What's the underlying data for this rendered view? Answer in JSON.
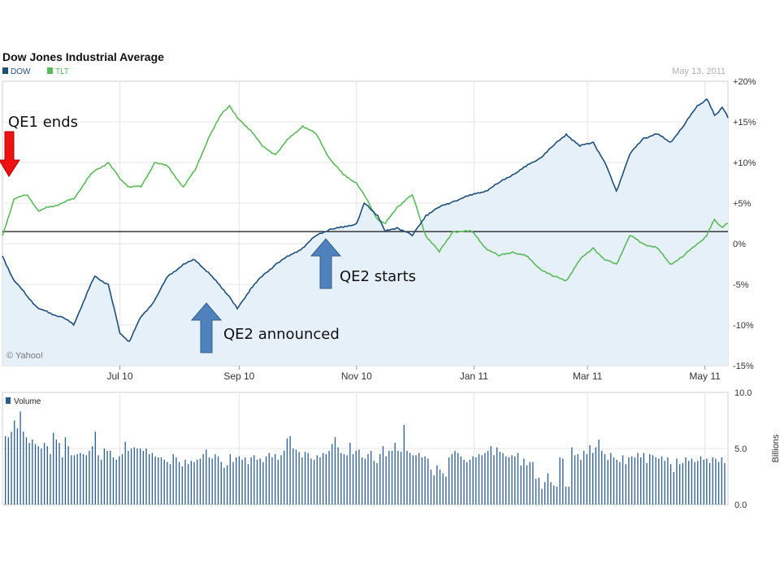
{
  "chart_data": [
    {
      "type": "line",
      "title": "Dow Jones Industrial Average",
      "date_stamp": "May 13, 2011",
      "credit": "© Yahoo!",
      "y_tick_labels": [
        "+20%",
        "+15%",
        "+10%",
        "+5%",
        "0%",
        "-5%",
        "-10%",
        "-15%"
      ],
      "ylim": [
        -15,
        20
      ],
      "x_tick_labels": [
        "Jul 10",
        "Sep 10",
        "Nov 10",
        "Jan 11",
        "Mar 11",
        "May 11"
      ],
      "xlim": [
        "2010-05-01",
        "2011-05-13"
      ],
      "x_tick_dates": [
        "2010-07-01",
        "2010-09-01",
        "2010-11-01",
        "2011-01-01",
        "2011-03-01",
        "2011-05-01"
      ],
      "series": [
        {
          "name": "DOW",
          "color": "#1f4e79",
          "fill": "#e6f0f8",
          "points": [
            [
              "2010-05-01",
              -1.5
            ],
            [
              "2010-05-07",
              -4.5
            ],
            [
              "2010-05-14",
              -6.5
            ],
            [
              "2010-05-20",
              -8.0
            ],
            [
              "2010-05-25",
              -8.5
            ],
            [
              "2010-06-01",
              -9.0
            ],
            [
              "2010-06-07",
              -10.0
            ],
            [
              "2010-06-14",
              -6.0
            ],
            [
              "2010-06-18",
              -4.0
            ],
            [
              "2010-06-25",
              -5.0
            ],
            [
              "2010-07-01",
              -11.0
            ],
            [
              "2010-07-06",
              -12.0
            ],
            [
              "2010-07-12",
              -9.0
            ],
            [
              "2010-07-19",
              -7.0
            ],
            [
              "2010-07-26",
              -4.0
            ],
            [
              "2010-08-03",
              -2.5
            ],
            [
              "2010-08-09",
              -2.0
            ],
            [
              "2010-08-16",
              -3.5
            ],
            [
              "2010-08-23",
              -5.5
            ],
            [
              "2010-08-27",
              -6.5
            ],
            [
              "2010-08-31",
              -8.0
            ],
            [
              "2010-09-07",
              -5.5
            ],
            [
              "2010-09-13",
              -4.0
            ],
            [
              "2010-09-20",
              -2.5
            ],
            [
              "2010-09-27",
              -1.5
            ],
            [
              "2010-10-04",
              -0.5
            ],
            [
              "2010-10-11",
              1.0
            ],
            [
              "2010-10-18",
              1.8
            ],
            [
              "2010-10-25",
              2.0
            ],
            [
              "2010-11-01",
              2.5
            ],
            [
              "2010-11-05",
              5.0
            ],
            [
              "2010-11-12",
              3.5
            ],
            [
              "2010-11-16",
              1.5
            ],
            [
              "2010-11-22",
              2.0
            ],
            [
              "2010-11-30",
              1.0
            ],
            [
              "2010-12-07",
              3.5
            ],
            [
              "2010-12-14",
              4.5
            ],
            [
              "2010-12-21",
              5.2
            ],
            [
              "2010-12-31",
              6.0
            ],
            [
              "2011-01-07",
              6.5
            ],
            [
              "2011-01-14",
              7.5
            ],
            [
              "2011-01-21",
              8.5
            ],
            [
              "2011-01-28",
              9.5
            ],
            [
              "2011-02-04",
              10.5
            ],
            [
              "2011-02-11",
              12.0
            ],
            [
              "2011-02-18",
              13.5
            ],
            [
              "2011-02-25",
              12.0
            ],
            [
              "2011-03-04",
              12.5
            ],
            [
              "2011-03-10",
              10.0
            ],
            [
              "2011-03-16",
              6.5
            ],
            [
              "2011-03-23",
              11.0
            ],
            [
              "2011-03-30",
              13.0
            ],
            [
              "2011-04-06",
              13.5
            ],
            [
              "2011-04-13",
              12.5
            ],
            [
              "2011-04-20",
              14.5
            ],
            [
              "2011-04-27",
              17.0
            ],
            [
              "2011-05-02",
              17.8
            ],
            [
              "2011-05-06",
              15.8
            ],
            [
              "2011-05-10",
              16.8
            ],
            [
              "2011-05-13",
              15.5
            ]
          ]
        },
        {
          "name": "TLT",
          "color": "#5cb85c",
          "points": [
            [
              "2010-05-01",
              1.0
            ],
            [
              "2010-05-07",
              5.5
            ],
            [
              "2010-05-14",
              6.0
            ],
            [
              "2010-05-20",
              4.0
            ],
            [
              "2010-05-25",
              4.5
            ],
            [
              "2010-06-01",
              5.0
            ],
            [
              "2010-06-07",
              5.5
            ],
            [
              "2010-06-14",
              8.0
            ],
            [
              "2010-06-18",
              9.0
            ],
            [
              "2010-06-25",
              10.0
            ],
            [
              "2010-07-01",
              8.0
            ],
            [
              "2010-07-06",
              7.0
            ],
            [
              "2010-07-12",
              7.0
            ],
            [
              "2010-07-19",
              10.0
            ],
            [
              "2010-07-26",
              9.5
            ],
            [
              "2010-08-03",
              7.0
            ],
            [
              "2010-08-09",
              9.0
            ],
            [
              "2010-08-16",
              13.0
            ],
            [
              "2010-08-23",
              16.0
            ],
            [
              "2010-08-27",
              17.0
            ],
            [
              "2010-08-31",
              15.5
            ],
            [
              "2010-09-07",
              14.0
            ],
            [
              "2010-09-13",
              12.0
            ],
            [
              "2010-09-20",
              11.0
            ],
            [
              "2010-09-27",
              13.0
            ],
            [
              "2010-10-04",
              14.5
            ],
            [
              "2010-10-11",
              13.5
            ],
            [
              "2010-10-18",
              10.5
            ],
            [
              "2010-10-25",
              8.5
            ],
            [
              "2010-11-01",
              7.5
            ],
            [
              "2010-11-05",
              6.0
            ],
            [
              "2010-11-12",
              3.0
            ],
            [
              "2010-11-16",
              2.5
            ],
            [
              "2010-11-22",
              4.5
            ],
            [
              "2010-11-30",
              6.0
            ],
            [
              "2010-12-07",
              1.0
            ],
            [
              "2010-12-14",
              -1.0
            ],
            [
              "2010-12-21",
              1.5
            ],
            [
              "2010-12-31",
              1.5
            ],
            [
              "2011-01-07",
              -0.5
            ],
            [
              "2011-01-14",
              -1.5
            ],
            [
              "2011-01-21",
              -1.0
            ],
            [
              "2011-01-28",
              -1.5
            ],
            [
              "2011-02-04",
              -3.0
            ],
            [
              "2011-02-11",
              -4.0
            ],
            [
              "2011-02-18",
              -4.5
            ],
            [
              "2011-02-25",
              -2.0
            ],
            [
              "2011-03-04",
              -0.5
            ],
            [
              "2011-03-10",
              -2.0
            ],
            [
              "2011-03-16",
              -2.5
            ],
            [
              "2011-03-23",
              1.0
            ],
            [
              "2011-03-30",
              0.0
            ],
            [
              "2011-04-06",
              -0.5
            ],
            [
              "2011-04-13",
              -2.5
            ],
            [
              "2011-04-20",
              -1.5
            ],
            [
              "2011-04-27",
              0.0
            ],
            [
              "2011-05-02",
              1.0
            ],
            [
              "2011-05-06",
              3.0
            ],
            [
              "2011-05-10",
              2.0
            ],
            [
              "2011-05-13",
              2.5
            ]
          ]
        }
      ],
      "annotations": [
        {
          "text": "QE1 ends",
          "arrow_color": "#ee1111",
          "arrow_direction": "down",
          "date": "2010-05-01",
          "level": 7
        },
        {
          "text": "QE2 announced",
          "arrow_color": "#4f81bd",
          "arrow_direction": "up",
          "date": "2010-08-31",
          "level": -9
        },
        {
          "text": "QE2 starts",
          "arrow_color": "#4f81bd",
          "arrow_direction": "up",
          "date": "2010-10-21",
          "level": -1
        }
      ]
    },
    {
      "type": "bar",
      "legend": "Volume",
      "unit": "Billions",
      "y_tick_labels": [
        "10.0",
        "5.0",
        "0.0"
      ],
      "ylim": [
        0,
        10
      ],
      "color": "#2a5d8f",
      "values": [
        6.1,
        6.0,
        6.5,
        7.5,
        6.8,
        8.3,
        6.5,
        6.0,
        5.5,
        5.8,
        5.4,
        5.2,
        5.0,
        5.5,
        5.2,
        4.5,
        6.4,
        5.8,
        5.5,
        4.2,
        6.0,
        5.2,
        4.4,
        4.4,
        4.5,
        4.6,
        4.5,
        4.4,
        4.8,
        5.2,
        6.5,
        4.4,
        4.0,
        5.0,
        4.8,
        4.8,
        4.2,
        4.0,
        4.3,
        4.5,
        5.6,
        4.8,
        5.0,
        5.1,
        5.0,
        5.0,
        4.8,
        5.0,
        4.5,
        4.6,
        4.3,
        4.2,
        4.2,
        4.0,
        3.8,
        3.6,
        4.5,
        4.2,
        3.8,
        3.4,
        4.0,
        3.6,
        3.9,
        3.8,
        4.0,
        4.1,
        4.5,
        4.9,
        4.2,
        4.1,
        4.5,
        4.3,
        3.8,
        3.3,
        3.5,
        4.5,
        3.8,
        4.2,
        4.3,
        4.0,
        4.2,
        3.6,
        4.2,
        4.4,
        4.0,
        4.1,
        3.8,
        4.3,
        4.6,
        4.2,
        4.5,
        4.0,
        4.4,
        4.8,
        5.9,
        6.1,
        5.0,
        4.9,
        4.7,
        4.2,
        4.7,
        4.6,
        4.1,
        4.0,
        4.4,
        4.2,
        4.6,
        4.5,
        4.8,
        5.4,
        6.0,
        5.1,
        4.6,
        4.5,
        4.4,
        5.5,
        4.5,
        4.8,
        4.9,
        4.2,
        4.1,
        4.5,
        4.8,
        3.9,
        3.7,
        4.5,
        5.2,
        4.3,
        4.8,
        4.8,
        5.5,
        4.8,
        4.7,
        7.1,
        4.8,
        4.6,
        4.4,
        4.4,
        4.6,
        4.2,
        4.3,
        4.1,
        3.1,
        2.6,
        3.5,
        3.1,
        2.8,
        2.5,
        4.2,
        4.5,
        4.8,
        4.6,
        4.3,
        4.0,
        3.8,
        4.0,
        4.3,
        4.2,
        4.5,
        4.4,
        4.6,
        4.8,
        5.2,
        4.4,
        5.1,
        4.7,
        4.6,
        4.3,
        4.2,
        4.4,
        4.3,
        4.6,
        3.5,
        4.1,
        3.5,
        3.8,
        3.8,
        2.3,
        2.4,
        1.4,
        2.0,
        2.8,
        2.0,
        1.7,
        1.6,
        4.2,
        4.1,
        1.6,
        1.6,
        5.1,
        4.4,
        4.5,
        4.0,
        4.8,
        4.5,
        5.3,
        4.6,
        5.1,
        5.8,
        4.8,
        4.5,
        4.0,
        4.6,
        4.2,
        4.0,
        3.8,
        4.4,
        3.6,
        4.2,
        4.3,
        4.2,
        4.6,
        4.2,
        4.6,
        3.7,
        4.5,
        4.4,
        4.2,
        4.1,
        4.3,
        3.9,
        4.2,
        3.6,
        2.9,
        4.1,
        3.6,
        3.7,
        4.2,
        3.9,
        4.1,
        3.8,
        3.9,
        4.3,
        4.0,
        4.1,
        3.7,
        4.2,
        4.1,
        3.8,
        4.2,
        3.7
      ]
    }
  ]
}
